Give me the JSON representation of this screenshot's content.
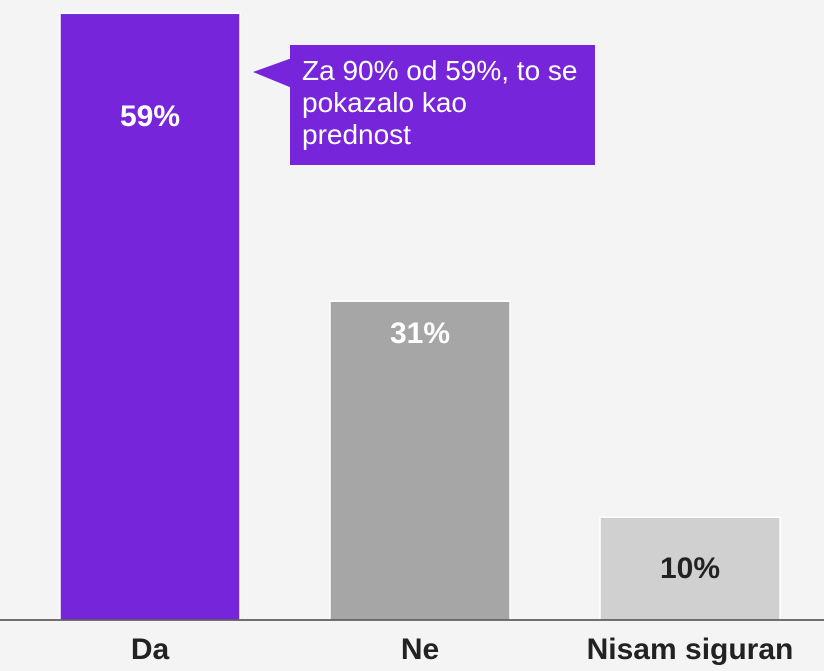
{
  "chart_data": {
    "type": "bar",
    "categories": [
      "Da",
      "Ne",
      "Nisam siguran"
    ],
    "values": [
      59,
      31,
      10
    ],
    "value_labels": [
      "59%",
      "31%",
      "10%"
    ],
    "colors": [
      "#7725da",
      "#a6a6a6",
      "#d0d0d0"
    ],
    "ylim": [
      0,
      60
    ],
    "annotation": "Za 90% od 59%, to se pokazalo kao prednost"
  }
}
